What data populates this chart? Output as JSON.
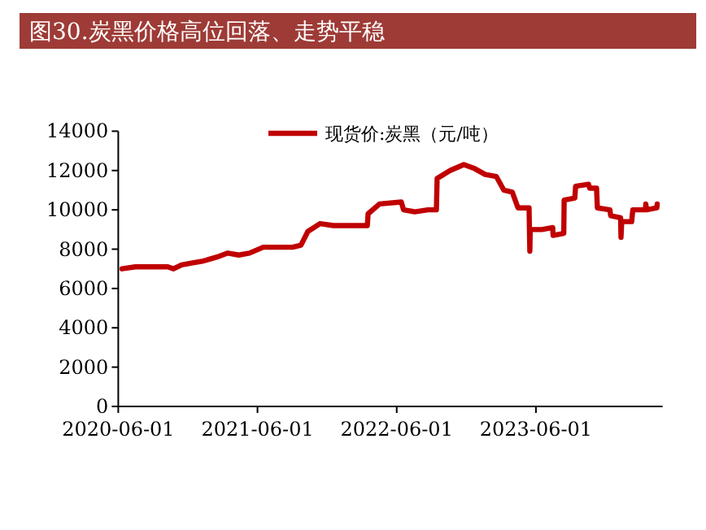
{
  "chart_data": {
    "type": "line",
    "title": "图30.炭黑价格高位回落、走势平稳",
    "x": [
      "2020-06-11",
      "2020-07-16",
      "2020-10-09",
      "2020-10-24",
      "2020-11-14",
      "2020-12-13",
      "2021-01-10",
      "2021-02-15",
      "2021-03-15",
      "2021-04-13",
      "2021-05-11",
      "2021-06-16",
      "2021-09-01",
      "2021-09-23",
      "2021-10-11",
      "2021-11-12",
      "2021-12-17",
      "2022-01-22",
      "2022-03-16",
      "2022-03-18",
      "2022-04-17",
      "2022-06-13",
      "2022-06-19",
      "2022-07-18",
      "2022-08-22",
      "2022-09-13",
      "2022-09-15",
      "2022-10-19",
      "2022-11-24",
      "2022-12-22",
      "2023-01-19",
      "2023-02-17",
      "2023-03-09",
      "2023-03-31",
      "2023-04-15",
      "2023-05-14",
      "2023-05-16",
      "2023-05-17",
      "2023-06-17",
      "2023-07-15",
      "2023-07-16",
      "2023-08-13",
      "2023-08-14",
      "2023-09-11",
      "2023-09-13",
      "2023-10-17",
      "2023-10-20",
      "2023-11-07",
      "2023-11-09",
      "2023-12-12",
      "2023-12-14",
      "2024-01-09",
      "2024-01-10",
      "2024-01-12",
      "2024-02-07",
      "2024-02-10",
      "2024-03-14",
      "2024-03-15",
      "2024-03-17",
      "2024-04-13",
      "2024-04-14"
    ],
    "series": [
      {
        "name": "现货价:炭黑（元/吨）",
        "color": "#c00000",
        "values": [
          7000,
          7100,
          7100,
          7000,
          7200,
          7300,
          7400,
          7600,
          7800,
          7700,
          7800,
          8100,
          8100,
          8200,
          8900,
          9300,
          9200,
          9200,
          9200,
          9800,
          10300,
          10400,
          10000,
          9900,
          10000,
          10000,
          11600,
          12000,
          12300,
          12100,
          11800,
          11700,
          11000,
          10900,
          10100,
          10100,
          7900,
          9000,
          9000,
          9100,
          8700,
          8800,
          10500,
          10600,
          11200,
          11300,
          11100,
          11100,
          10100,
          10000,
          9700,
          9600,
          8600,
          9400,
          9400,
          10000,
          10000,
          10300,
          10000,
          10100,
          10300
        ]
      }
    ],
    "xlim": [
      "2020-06-01",
      "2024-04-28"
    ],
    "xticks": [
      "2020-06-01",
      "2021-06-01",
      "2022-06-01",
      "2023-06-01"
    ],
    "ylim": [
      0,
      14000
    ],
    "yticks": [
      0,
      2000,
      4000,
      6000,
      8000,
      10000,
      12000,
      14000
    ],
    "grid": false,
    "legend": "top",
    "marker": "none",
    "line_style": "solid"
  }
}
